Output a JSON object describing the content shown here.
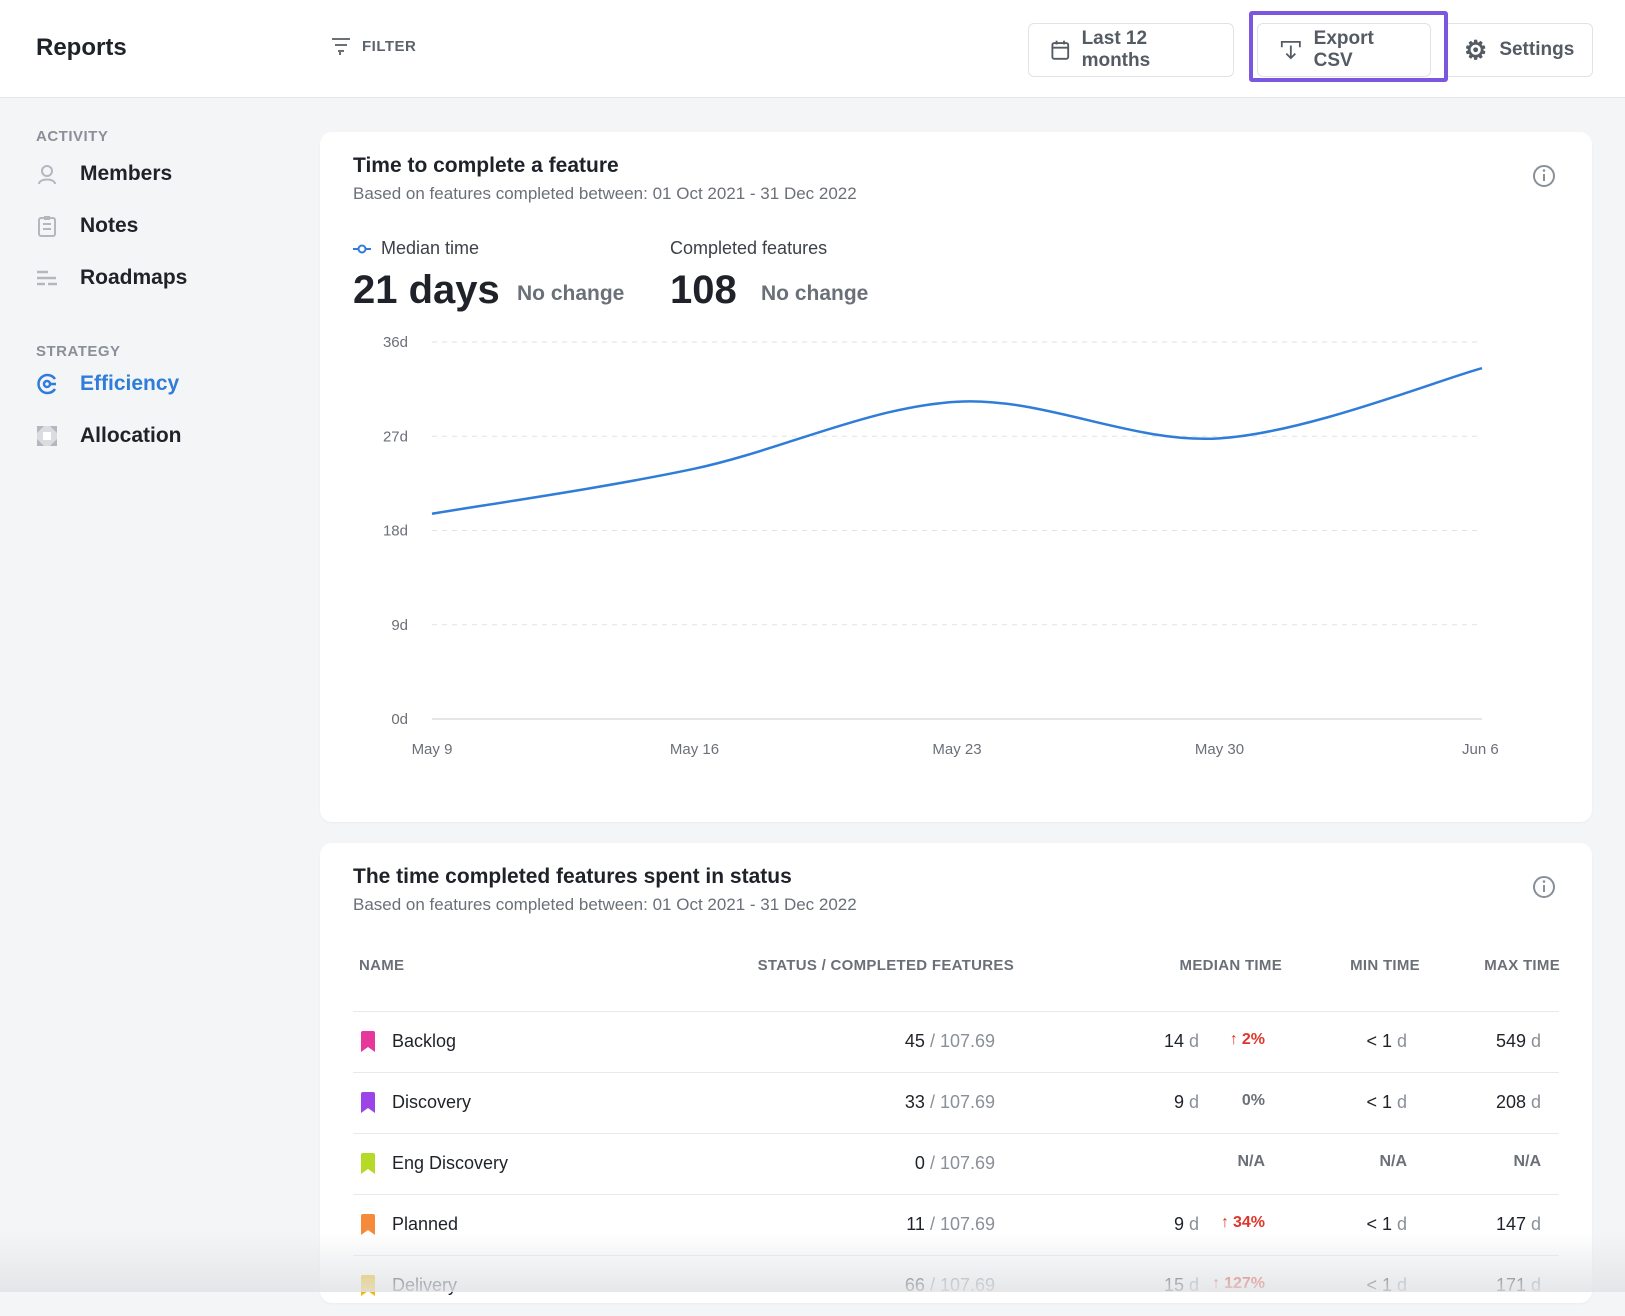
{
  "app": {
    "title": "Reports"
  },
  "toolbar": {
    "filter_label": "FILTER",
    "date_label": "Last 12 months",
    "export_label": "Export CSV",
    "settings_label": "Settings"
  },
  "sidebar": {
    "sections": [
      {
        "label": "ACTIVITY",
        "items": [
          {
            "label": "Members",
            "icon": "user-icon"
          },
          {
            "label": "Notes",
            "icon": "note-icon"
          },
          {
            "label": "Roadmaps",
            "icon": "roadmap-icon"
          }
        ]
      },
      {
        "label": "STRATEGY",
        "items": [
          {
            "label": "Efficiency",
            "icon": "gauge-icon",
            "active": true
          },
          {
            "label": "Allocation",
            "icon": "allocation-icon"
          }
        ]
      }
    ]
  },
  "feature_card": {
    "title": "Time to complete a feature",
    "subtitle": "Based on features completed between: 01 Oct 2021 - 31 Dec 2022",
    "metrics": [
      {
        "label": "Median time",
        "value": "21 days",
        "change": "No change"
      },
      {
        "label": "Completed features",
        "value": "108",
        "change": "No change"
      }
    ]
  },
  "chart_data": {
    "type": "line",
    "x": [
      "May 9",
      "May 16",
      "May 23",
      "May 30",
      "Jun 6"
    ],
    "series": [
      {
        "name": "Median time",
        "values": [
          19.6,
          23.9,
          30.3,
          26.8,
          33.5
        ],
        "color": "#2f7dd9"
      }
    ],
    "ytick_labels": [
      "0d",
      "9d",
      "18d",
      "27d",
      "36d"
    ],
    "ylim": [
      0,
      36
    ],
    "grid": true
  },
  "status_card": {
    "title": "The time completed features spent in status",
    "subtitle": "Based on features completed between: 01 Oct 2021 - 31 Dec 2022",
    "columns": [
      "NAME",
      "STATUS / COMPLETED FEATURES",
      "MEDIAN TIME",
      "MIN TIME",
      "MAX TIME"
    ],
    "rows": [
      {
        "name": "Backlog",
        "color": "#e8379b",
        "status": "45",
        "total": "/ 107.69",
        "median": "14",
        "median_unit": "d",
        "change": "2%",
        "change_dir": "up",
        "min": "< 1",
        "min_unit": "d",
        "max": "549",
        "max_unit": "d"
      },
      {
        "name": "Discovery",
        "color": "#9b45e6",
        "status": "33",
        "total": "/ 107.69",
        "median": "9",
        "median_unit": "d",
        "change": "0%",
        "change_dir": "none",
        "min": "< 1",
        "min_unit": "d",
        "max": "208",
        "max_unit": "d"
      },
      {
        "name": "Eng Discovery",
        "color": "#b7d92a",
        "status": "0",
        "total": "/ 107.69",
        "median": "",
        "median_unit": "",
        "change": "N/A",
        "change_dir": "na",
        "min": "N/A",
        "min_unit": "",
        "max": "N/A",
        "max_unit": ""
      },
      {
        "name": "Planned",
        "color": "#f58a3a",
        "status": "11",
        "total": "/ 107.69",
        "median": "9",
        "median_unit": "d",
        "change": "34%",
        "change_dir": "up",
        "min": "< 1",
        "min_unit": "d",
        "max": "147",
        "max_unit": "d"
      },
      {
        "name": "Delivery",
        "color": "#f2b90c",
        "status": "66",
        "total": "/ 107.69",
        "median": "15",
        "median_unit": "d",
        "change": "127%",
        "change_dir": "up",
        "min": "< 1",
        "min_unit": "d",
        "max": "171",
        "max_unit": "d"
      }
    ]
  }
}
